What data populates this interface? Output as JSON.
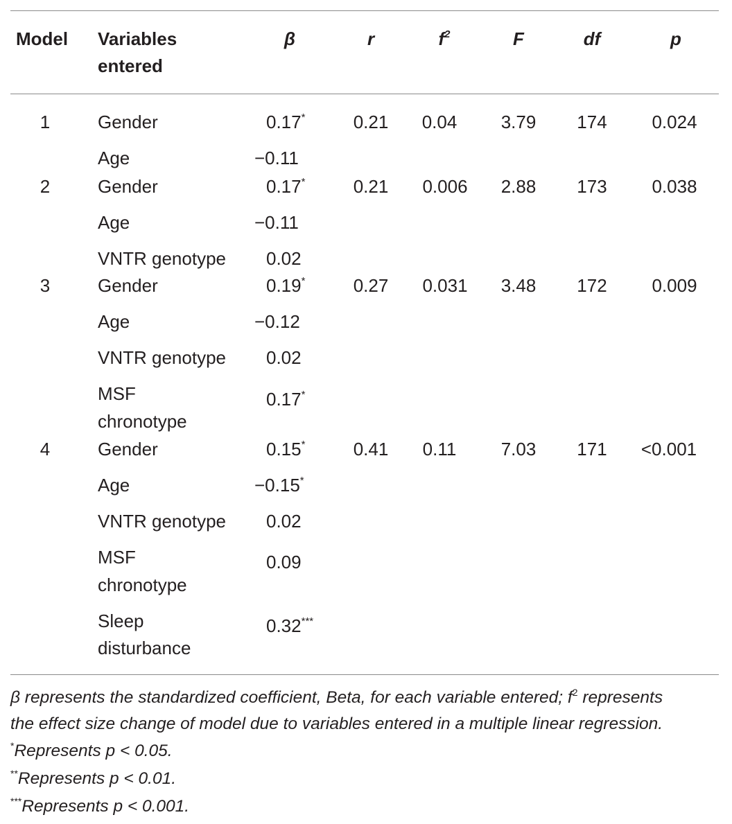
{
  "headers": {
    "model": "Model",
    "variables": [
      "Variables",
      "entered"
    ],
    "beta": "β",
    "r": "r",
    "f2_base": "f",
    "f2_sup": "2",
    "F": "F",
    "df": "df",
    "p": "p"
  },
  "models": [
    {
      "model": "1",
      "r": "0.21",
      "f2": "0.04",
      "F": "3.79",
      "df": "174",
      "p": "0.024",
      "rows": [
        {
          "var": "Gender",
          "beta": "0.17",
          "sig": "*"
        },
        {
          "var": "Age",
          "beta": "−0.11",
          "sig": ""
        }
      ]
    },
    {
      "model": "2",
      "r": "0.21",
      "f2": "0.006",
      "F": "2.88",
      "df": "173",
      "p": "0.038",
      "rows": [
        {
          "var": "Gender",
          "beta": "0.17",
          "sig": "*"
        },
        {
          "var": "Age",
          "beta": "−0.11",
          "sig": ""
        },
        {
          "var": "VNTR genotype",
          "beta": "0.02",
          "sig": ""
        }
      ]
    },
    {
      "model": "3",
      "r": "0.27",
      "f2": "0.031",
      "F": "3.48",
      "df": "172",
      "p": "0.009",
      "rows": [
        {
          "var": "Gender",
          "beta": "0.19",
          "sig": "*"
        },
        {
          "var": "Age",
          "beta": "−0.12",
          "sig": ""
        },
        {
          "var": "VNTR genotype",
          "beta": "0.02",
          "sig": ""
        },
        {
          "var": [
            "MSF",
            "chronotype"
          ],
          "beta": "0.17",
          "sig": "*"
        }
      ]
    },
    {
      "model": "4",
      "r": "0.41",
      "f2": "0.11",
      "F": "7.03",
      "df": "171",
      "p": "<0.001",
      "rows": [
        {
          "var": "Gender",
          "beta": "0.15",
          "sig": "*"
        },
        {
          "var": "Age",
          "beta": "−0.15",
          "sig": "*"
        },
        {
          "var": "VNTR genotype",
          "beta": "0.02",
          "sig": ""
        },
        {
          "var": [
            "MSF",
            "chronotype"
          ],
          "beta": "0.09",
          "sig": ""
        },
        {
          "var": [
            "Sleep",
            "disturbance"
          ],
          "beta": "0.32",
          "sig": "***"
        }
      ]
    }
  ],
  "footnotes": {
    "line1": "β represents the standardized coefficient, Beta, for each variable entered; f",
    "line1_sup": "2",
    "line1_end": " represents",
    "line2": "the effect size change of model due to variables entered in a multiple linear regression.",
    "notes": [
      {
        "mark": "*",
        "text": "Represents p < 0.05."
      },
      {
        "mark": "**",
        "text": "Represents p < 0.01."
      },
      {
        "mark": "***",
        "text": "Represents p < 0.001."
      }
    ]
  }
}
